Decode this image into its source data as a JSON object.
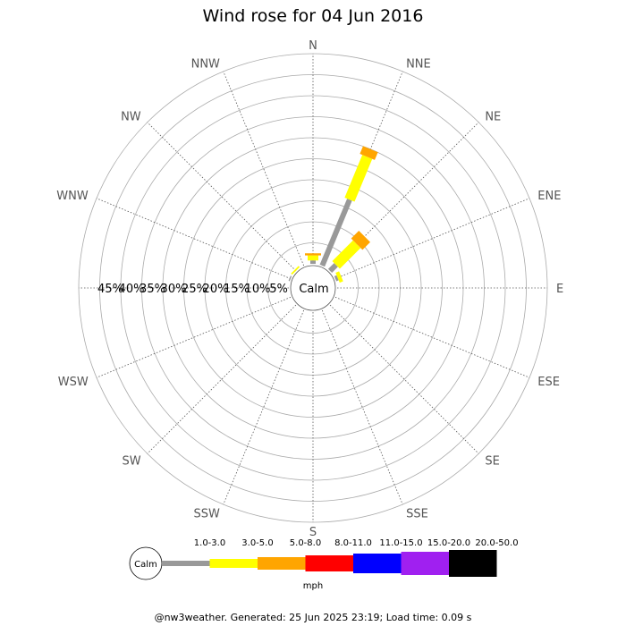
{
  "chart_data": {
    "type": "windrose",
    "title": "Wind rose for 04 Jun 2016",
    "directions": [
      "N",
      "NNE",
      "NE",
      "ENE",
      "E",
      "ESE",
      "SE",
      "SSE",
      "S",
      "SSW",
      "SW",
      "WSW",
      "W",
      "WNW",
      "NW",
      "NNW"
    ],
    "radial_ticks": [
      "5%",
      "10%",
      "15%",
      "20%",
      "25%",
      "30%",
      "35%",
      "40%",
      "45%"
    ],
    "radial_max": 50,
    "calm_label": "Calm",
    "speed_unit": "mph",
    "bins": [
      {
        "label": "1.0-3.0",
        "color": "#999999"
      },
      {
        "label": "3.0-5.0",
        "color": "#ffff00"
      },
      {
        "label": "5.0-8.0",
        "color": "#ffa500"
      },
      {
        "label": "8.0-11.0",
        "color": "#ff0000"
      },
      {
        "label": "11.0-15.0",
        "color": "#0000ff"
      },
      {
        "label": "15.0-20.0",
        "color": "#a020f0"
      },
      {
        "label": "20.0-50.0",
        "color": "#000000"
      }
    ],
    "series": [
      {
        "direction": "N",
        "segments": [
          0.8,
          1.2,
          0.5
        ]
      },
      {
        "direction": "NNE",
        "segments": [
          17.0,
          11.0,
          2.0
        ]
      },
      {
        "direction": "NE",
        "segments": [
          2.0,
          7.0,
          2.6
        ]
      },
      {
        "direction": "ENE",
        "segments": [
          0.6,
          0.9
        ]
      },
      {
        "direction": "WNW",
        "segments": [
          0.3
        ]
      },
      {
        "direction": "NW",
        "segments": [
          0.0,
          0.4
        ]
      }
    ]
  },
  "footer": "@nw3weather. Generated: 25 Jun 2025 23:19; Load time: 0.09 s"
}
